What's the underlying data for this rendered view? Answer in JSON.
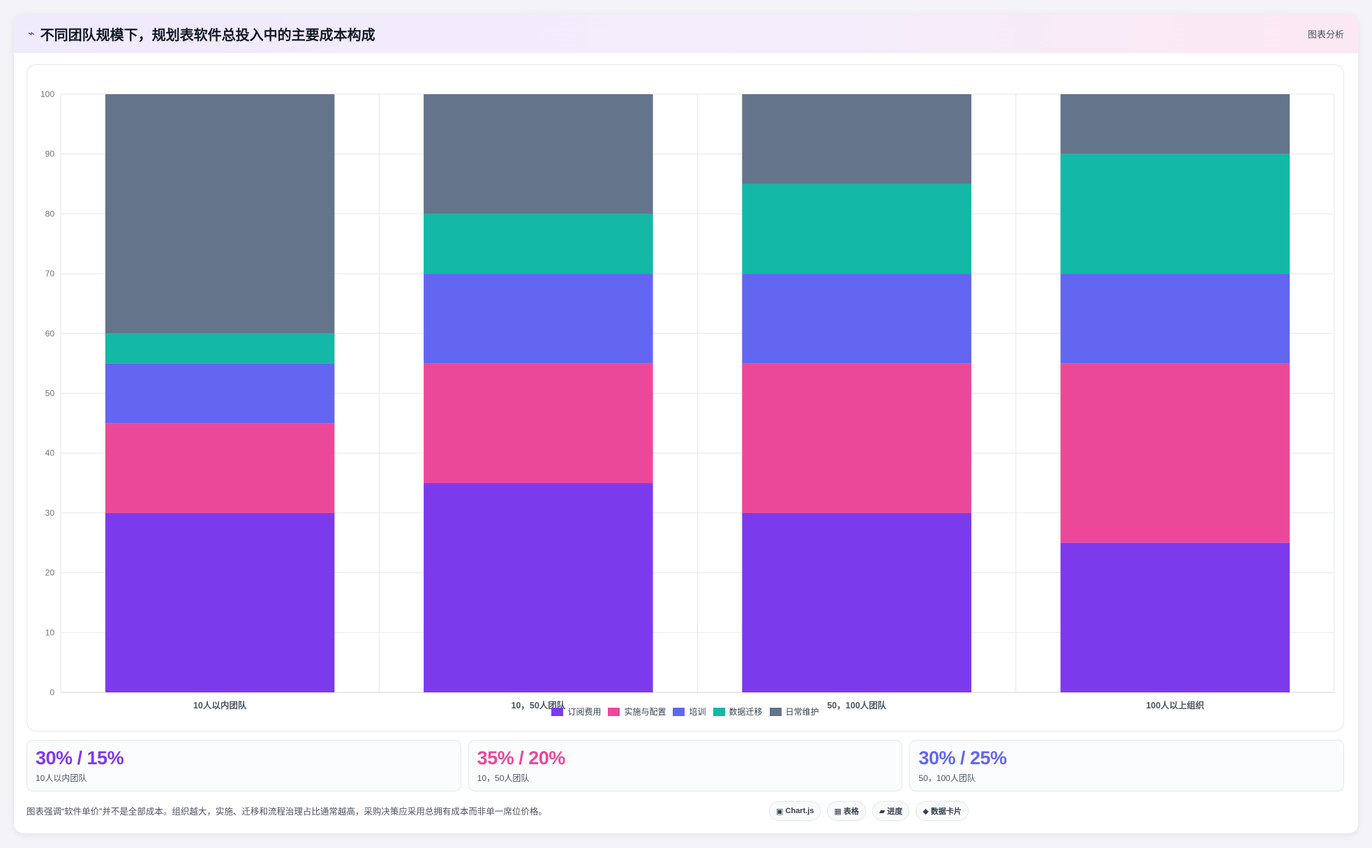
{
  "header": {
    "icon": "⌁",
    "title": "不同团队规模下，规划表软件总投入中的主要成本构成",
    "tag": "图表分析"
  },
  "chart_data": {
    "type": "bar",
    "stacked": true,
    "categories": [
      "10人以内团队",
      "10，50人团队",
      "50，100人团队",
      "100人以上组织"
    ],
    "series": [
      {
        "name": "订阅费用",
        "color": "#7c3aed",
        "values": [
          30,
          35,
          30,
          25
        ]
      },
      {
        "name": "实施与配置",
        "color": "#ec4899",
        "values": [
          15,
          20,
          25,
          30
        ]
      },
      {
        "name": "培训",
        "color": "#6366f1",
        "values": [
          10,
          15,
          15,
          15
        ]
      },
      {
        "name": "数据迁移",
        "color": "#14b8a6",
        "values": [
          5,
          10,
          15,
          20
        ]
      },
      {
        "name": "日常维护",
        "color": "#64748b",
        "values": [
          40,
          20,
          15,
          10
        ]
      }
    ],
    "ylim": [
      0,
      100
    ],
    "yticks": [
      0,
      10,
      20,
      30,
      40,
      50,
      60,
      70,
      80,
      90,
      100
    ],
    "grid": true,
    "legend_position": "bottom"
  },
  "stats": [
    {
      "value": "30% / 15%",
      "label": "10人以内团队",
      "color": "#7c3aed"
    },
    {
      "value": "35% / 20%",
      "label": "10，50人团队",
      "color": "#ec4899"
    },
    {
      "value": "30% / 25%",
      "label": "50，100人团队",
      "color": "#6366f1"
    }
  ],
  "footer": {
    "note": "图表强调“软件单价”并不是全部成本。组织越大，实施、迁移和流程治理占比通常越高，采购决策应采用总拥有成本而非单一席位价格。",
    "chips": [
      {
        "icon": "▣",
        "label": "Chart.js"
      },
      {
        "icon": "▦",
        "label": "表格"
      },
      {
        "icon": "▰",
        "label": "进度"
      },
      {
        "icon": "◆",
        "label": "数据卡片"
      }
    ]
  }
}
